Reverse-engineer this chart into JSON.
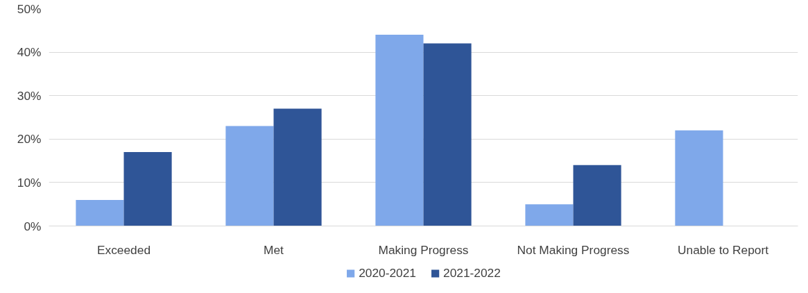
{
  "chart_data": {
    "type": "bar",
    "categories": [
      "Exceeded",
      "Met",
      "Making Progress",
      "Not Making Progress",
      "Unable to Report"
    ],
    "series": [
      {
        "name": "2020-2021",
        "color": "#7fa8ea",
        "values": [
          6,
          23,
          44,
          5,
          22
        ]
      },
      {
        "name": "2021-2022",
        "color": "#2f5597",
        "values": [
          17,
          27,
          42,
          14,
          null
        ]
      }
    ],
    "ylim": [
      0,
      50
    ],
    "yticks": [
      {
        "value": 0,
        "label": "0%"
      },
      {
        "value": 10,
        "label": "10%"
      },
      {
        "value": 20,
        "label": "20%"
      },
      {
        "value": 30,
        "label": "30%"
      },
      {
        "value": 40,
        "label": "40%"
      },
      {
        "value": 50,
        "label": "50%"
      }
    ],
    "grid": "y",
    "legend": "bottom"
  }
}
